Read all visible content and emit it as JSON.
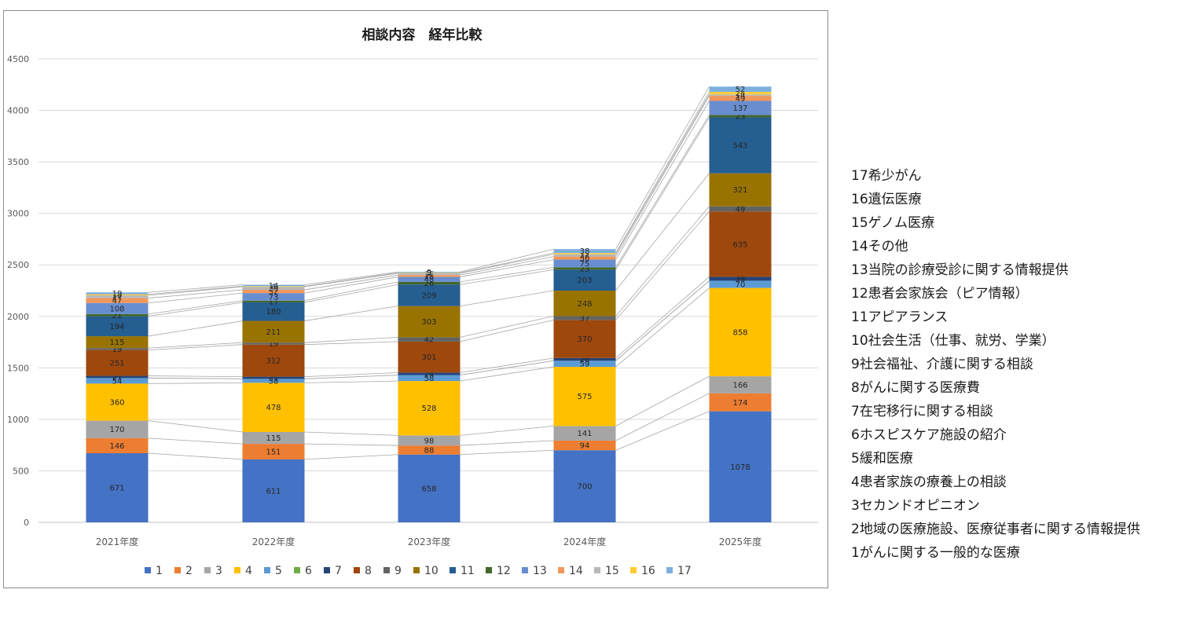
{
  "chart_data": {
    "type": "bar",
    "stacked": true,
    "title": "相談内容　経年比較",
    "categories": [
      "2021年度",
      "2022年度",
      "2023年度",
      "2024年度",
      "2025年度"
    ],
    "ylim": [
      0,
      4500
    ],
    "yticks": [
      0,
      500,
      1000,
      1500,
      2000,
      2500,
      3000,
      3500,
      4000,
      4500
    ],
    "grid": true,
    "legend_position": "bottom",
    "series_lines": true,
    "series": [
      {
        "name": "1",
        "color": "#4472C4",
        "values": [
          671,
          611,
          658,
          700,
          1078
        ]
      },
      {
        "name": "2",
        "color": "#ED7D31",
        "values": [
          146,
          151,
          88,
          94,
          174
        ]
      },
      {
        "name": "3",
        "color": "#A5A5A5",
        "values": [
          170,
          115,
          98,
          141,
          166
        ]
      },
      {
        "name": "4",
        "color": "#FFC000",
        "values": [
          360,
          478,
          528,
          575,
          858
        ]
      },
      {
        "name": "5",
        "color": "#5B9BD5",
        "values": [
          54,
          38,
          58,
          59,
          70
        ]
      },
      {
        "name": "6",
        "color": "#70AD47",
        "values": [
          0,
          0,
          0,
          0,
          0
        ]
      },
      {
        "name": "7",
        "color": "#264478",
        "values": [
          21,
          21,
          24,
          26,
          38
        ]
      },
      {
        "name": "8",
        "color": "#9E480E",
        "values": [
          251,
          312,
          301,
          370,
          635
        ]
      },
      {
        "name": "9",
        "color": "#636363",
        "values": [
          19,
          19,
          42,
          37,
          49
        ]
      },
      {
        "name": "10",
        "color": "#997300",
        "values": [
          115,
          211,
          303,
          248,
          321
        ]
      },
      {
        "name": "11",
        "color": "#255E91",
        "values": [
          194,
          180,
          209,
          203,
          543
        ]
      },
      {
        "name": "12",
        "color": "#43682B",
        "values": [
          21,
          17,
          26,
          23,
          23
        ]
      },
      {
        "name": "13",
        "color": "#698ED0",
        "values": [
          108,
          73,
          48,
          75,
          137
        ]
      },
      {
        "name": "14",
        "color": "#F1975A",
        "values": [
          47,
          32,
          18,
          30,
          49
        ]
      },
      {
        "name": "15",
        "color": "#B7B7B7",
        "values": [
          27,
          29,
          17,
          22,
          14
        ]
      },
      {
        "name": "16",
        "color": "#FFCD33",
        "values": [
          10,
          6,
          5,
          12,
          24
        ]
      },
      {
        "name": "17",
        "color": "#7CAFDD",
        "values": [
          19,
          14,
          9,
          38,
          52
        ]
      }
    ]
  },
  "category_list": [
    "17希少がん",
    "16遺伝医療",
    "15ゲノム医療",
    "14その他",
    "13当院の診療受診に関する情報提供",
    "12患者会家族会（ピア情報）",
    "11アピアランス",
    "10社会生活（仕事、就労、学業）",
    "9社会福祉、介護に関する相談",
    "8がんに関する医療費",
    "7在宅移行に関する相談",
    "6ホスピスケア施設の紹介",
    "5緩和医療",
    "4患者家族の療養上の相談",
    "3セカンドオピニオン",
    "2地域の医療施設、医療従事者に関する情報提供",
    "1がんに関する一般的な医療"
  ]
}
